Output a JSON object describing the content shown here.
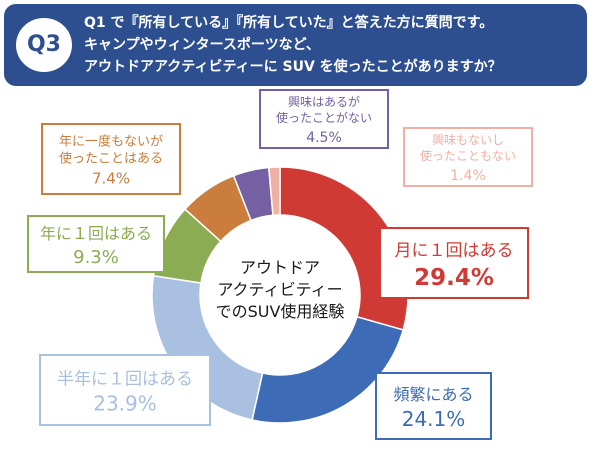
{
  "header": {
    "badge": "Q3",
    "lines": [
      "Q1 で『所有している』『所有していた』と答えた方に質問です。",
      "キャンプやウィンタースポーツなど、",
      "アウトドアアクティビティーに SUV を使ったことがありますか？"
    ]
  },
  "chart_data": {
    "type": "pie",
    "center_label": [
      "アウトドア",
      "アクティビティー",
      "でのSUV使用経験"
    ],
    "slices": [
      {
        "label": "月に１回はある",
        "value": 29.4,
        "value_text": "29.4%",
        "color": "#d03a34"
      },
      {
        "label": "頻繁にある",
        "value": 24.1,
        "value_text": "24.1%",
        "color": "#3d6bb5"
      },
      {
        "label": "半年に１回はある",
        "value": 23.9,
        "value_text": "23.9%",
        "color": "#a9c0e0"
      },
      {
        "label": "年に１回はある",
        "value": 9.3,
        "value_text": "9.3%",
        "color": "#8bac52"
      },
      {
        "label": "年に一度もないが\n使ったことはある",
        "value": 7.4,
        "value_text": "7.4%",
        "color": "#cb7d3e"
      },
      {
        "label": "興味はあるが\n使ったことがない",
        "value": 4.5,
        "value_text": "4.5%",
        "color": "#7460a3"
      },
      {
        "label": "興味もないし\n使ったこともない",
        "value": 1.4,
        "value_text": "1.4%",
        "color": "#f0b0a4"
      }
    ]
  }
}
